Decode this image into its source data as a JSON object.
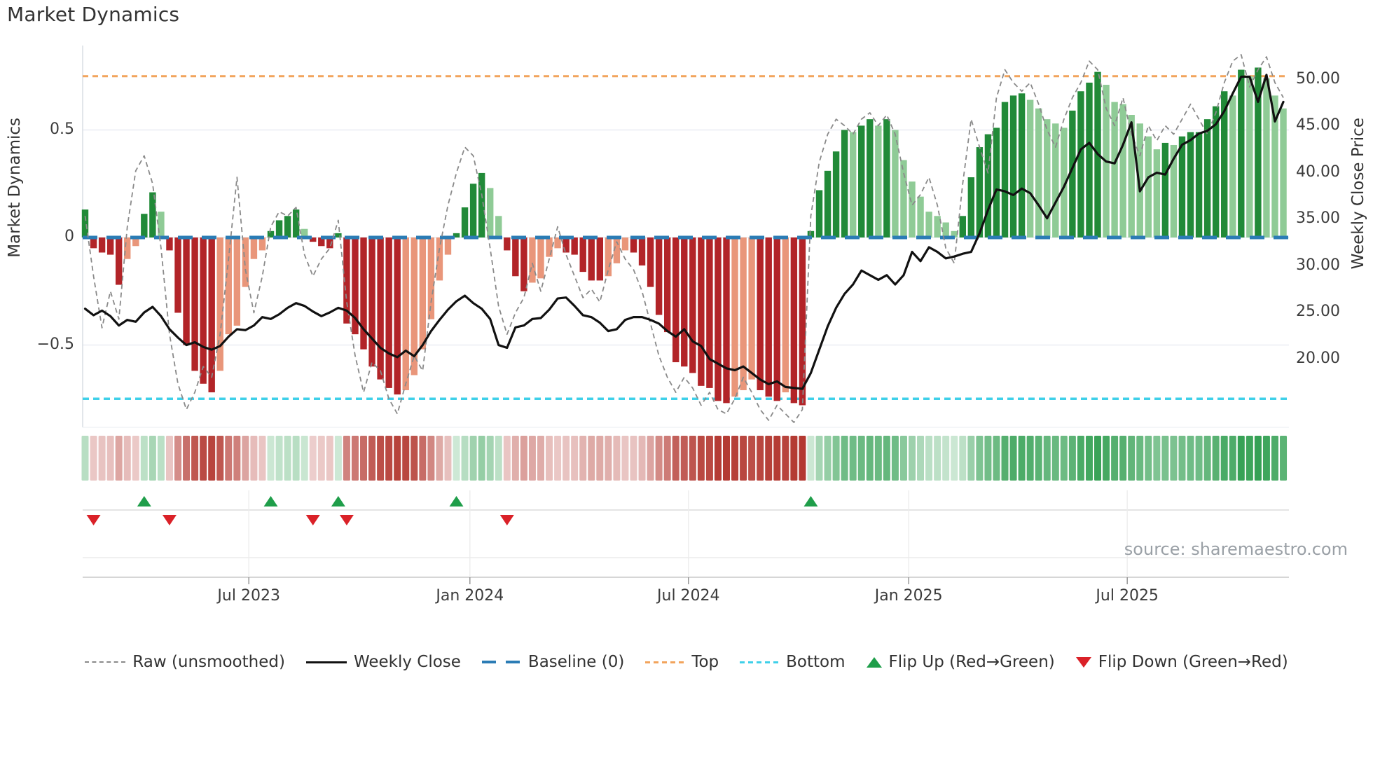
{
  "title": "Market Dynamics",
  "source": "source: sharemaestro.com",
  "left_axis": {
    "label": "Market Dynamics",
    "ticks": [
      {
        "value": 0.5,
        "label": "0.5"
      },
      {
        "value": 0,
        "label": "0"
      },
      {
        "value": -0.5,
        "label": "−0.5"
      }
    ]
  },
  "right_axis": {
    "label": "Weekly Close Price",
    "ticks": [
      {
        "value": 50,
        "label": "50.00"
      },
      {
        "value": 45,
        "label": "45.00"
      },
      {
        "value": 40,
        "label": "40.00"
      },
      {
        "value": 35,
        "label": "35.00"
      },
      {
        "value": 30,
        "label": "30.00"
      },
      {
        "value": 25,
        "label": "25.00"
      },
      {
        "value": 20,
        "label": "20.00"
      }
    ]
  },
  "x_axis": {
    "ticks": [
      {
        "week": 19.4,
        "label": "Jul 2023"
      },
      {
        "week": 45.6,
        "label": "Jan 2024"
      },
      {
        "week": 71.5,
        "label": "Jul 2024"
      },
      {
        "week": 97.6,
        "label": "Jan 2025"
      },
      {
        "week": 123.5,
        "label": "Jul 2025"
      }
    ]
  },
  "legend": [
    {
      "label": "Raw (unsmoothed)",
      "swatch": "dash",
      "color": "#8a8a8a"
    },
    {
      "label": "Weekly Close",
      "swatch": "solid",
      "color": "#111111"
    },
    {
      "label": "Baseline (0)",
      "swatch": "longdash",
      "color": "#2b7cb5"
    },
    {
      "label": "Top",
      "swatch": "dots",
      "color": "#f2a45c"
    },
    {
      "label": "Bottom",
      "swatch": "dots",
      "color": "#3fd0e9"
    },
    {
      "label": "Flip Up (Red→Green)",
      "swatch": "up",
      "color": "#1f9e4a"
    },
    {
      "label": "Flip Down (Green→Red)",
      "swatch": "down",
      "color": "#da2128"
    }
  ],
  "colors": {
    "bar_pos_strong": "#218a38",
    "bar_pos_soft": "#8fcb96",
    "bar_neg_strong": "#b22428",
    "bar_neg_soft": "#e9967a",
    "raw_line": "#8a8a8a",
    "close_line": "#111111",
    "baseline": "#2b7cb5",
    "top_line": "#f2a45c",
    "bottom_line": "#3fd0e9",
    "flip_up": "#1f9e4a",
    "flip_down": "#da2128",
    "heat_pos": "#2f9e4f",
    "heat_neg": "#b03028",
    "grid": "#e9edf3",
    "spine": "#d9dde3"
  },
  "chart_data": {
    "type": "bar",
    "description": "Weekly market-dynamics oscillator (bars + raw dashed line, left axis) with weekly close price (black line, right axis), sign heatmap strip and flip markers",
    "n_weeks": 143,
    "x_unit": "week",
    "left_ylim": [
      -0.88,
      0.89
    ],
    "right_ylim": [
      12.7,
      53.6
    ],
    "baseline": 0,
    "top_threshold": 0.75,
    "bottom_threshold": -0.75,
    "flip_up_weeks": [
      7,
      22,
      30,
      44,
      86
    ],
    "flip_down_weeks": [
      1,
      10,
      27,
      31,
      50
    ],
    "heatmap": {
      "rows": 1,
      "encodes": "oscillator sign and magnitude per week"
    },
    "series": [
      {
        "name": "Smoothed oscillator",
        "type": "bar",
        "axis": "left",
        "values": [
          0.13,
          -0.05,
          -0.07,
          -0.08,
          -0.22,
          -0.1,
          -0.04,
          0.11,
          0.21,
          0.12,
          -0.06,
          -0.35,
          -0.5,
          -0.62,
          -0.68,
          -0.72,
          -0.62,
          -0.45,
          -0.41,
          -0.23,
          -0.1,
          -0.06,
          0.03,
          0.08,
          0.1,
          0.13,
          0.04,
          -0.02,
          -0.04,
          -0.05,
          0.02,
          -0.4,
          -0.45,
          -0.52,
          -0.6,
          -0.66,
          -0.7,
          -0.73,
          -0.71,
          -0.64,
          -0.52,
          -0.38,
          -0.2,
          -0.08,
          0.02,
          0.14,
          0.25,
          0.3,
          0.23,
          0.1,
          -0.06,
          -0.18,
          -0.25,
          -0.21,
          -0.19,
          -0.09,
          -0.05,
          -0.07,
          -0.08,
          -0.16,
          -0.2,
          -0.2,
          -0.18,
          -0.12,
          -0.06,
          -0.07,
          -0.13,
          -0.23,
          -0.36,
          -0.44,
          -0.58,
          -0.6,
          -0.63,
          -0.69,
          -0.7,
          -0.76,
          -0.77,
          -0.74,
          -0.71,
          -0.66,
          -0.71,
          -0.74,
          -0.76,
          -0.72,
          -0.77,
          -0.78,
          0.03,
          0.22,
          0.31,
          0.4,
          0.5,
          0.49,
          0.52,
          0.55,
          0.52,
          0.55,
          0.5,
          0.36,
          0.26,
          0.19,
          0.12,
          0.1,
          0.07,
          0.03,
          0.1,
          0.28,
          0.42,
          0.48,
          0.51,
          0.63,
          0.66,
          0.67,
          0.64,
          0.6,
          0.55,
          0.53,
          0.51,
          0.59,
          0.68,
          0.72,
          0.77,
          0.71,
          0.63,
          0.62,
          0.57,
          0.53,
          0.47,
          0.41,
          0.44,
          0.43,
          0.47,
          0.49,
          0.49,
          0.55,
          0.61,
          0.68,
          0.66,
          0.78,
          0.75,
          0.79,
          0.74,
          0.66,
          0.6
        ]
      },
      {
        "name": "Raw (unsmoothed)",
        "type": "line",
        "style": "dashed",
        "axis": "left",
        "values": [
          0.1,
          -0.18,
          -0.42,
          -0.25,
          -0.38,
          0.05,
          0.31,
          0.38,
          0.25,
          -0.05,
          -0.45,
          -0.68,
          -0.8,
          -0.72,
          -0.6,
          -0.65,
          -0.45,
          -0.1,
          0.28,
          -0.15,
          -0.35,
          -0.18,
          0.05,
          0.12,
          0.1,
          0.14,
          -0.08,
          -0.18,
          -0.1,
          -0.05,
          0.08,
          -0.3,
          -0.55,
          -0.72,
          -0.58,
          -0.62,
          -0.75,
          -0.82,
          -0.68,
          -0.55,
          -0.62,
          -0.3,
          -0.05,
          0.15,
          0.3,
          0.42,
          0.38,
          0.2,
          -0.05,
          -0.32,
          -0.45,
          -0.35,
          -0.28,
          -0.12,
          -0.25,
          -0.1,
          0.05,
          -0.08,
          -0.18,
          -0.28,
          -0.24,
          -0.3,
          -0.15,
          -0.02,
          -0.1,
          -0.15,
          -0.25,
          -0.4,
          -0.55,
          -0.65,
          -0.72,
          -0.65,
          -0.7,
          -0.78,
          -0.72,
          -0.8,
          -0.82,
          -0.75,
          -0.65,
          -0.72,
          -0.8,
          -0.85,
          -0.78,
          -0.82,
          -0.86,
          -0.8,
          0.1,
          0.35,
          0.48,
          0.55,
          0.52,
          0.48,
          0.55,
          0.58,
          0.52,
          0.57,
          0.48,
          0.3,
          0.15,
          0.2,
          0.28,
          0.15,
          -0.05,
          -0.12,
          0.25,
          0.55,
          0.42,
          0.3,
          0.65,
          0.78,
          0.72,
          0.68,
          0.72,
          0.62,
          0.5,
          0.42,
          0.55,
          0.65,
          0.72,
          0.82,
          0.78,
          0.6,
          0.52,
          0.65,
          0.48,
          0.38,
          0.52,
          0.45,
          0.52,
          0.48,
          0.55,
          0.62,
          0.55,
          0.48,
          0.58,
          0.72,
          0.82,
          0.85,
          0.7,
          0.78,
          0.84,
          0.72,
          0.65
        ]
      },
      {
        "name": "Weekly Close",
        "type": "line",
        "axis": "right",
        "values": [
          25.4,
          24.7,
          25.2,
          24.6,
          23.6,
          24.2,
          24.0,
          25.0,
          25.6,
          24.6,
          23.2,
          22.3,
          21.5,
          21.8,
          21.3,
          21.0,
          21.4,
          22.4,
          23.2,
          23.1,
          23.6,
          24.5,
          24.3,
          24.8,
          25.5,
          26.0,
          25.7,
          25.1,
          24.6,
          25.0,
          25.5,
          25.2,
          24.4,
          23.2,
          22.2,
          21.2,
          20.6,
          20.2,
          20.9,
          20.3,
          21.5,
          23.0,
          24.2,
          25.3,
          26.2,
          26.8,
          26.0,
          25.4,
          24.3,
          21.5,
          21.2,
          23.4,
          23.6,
          24.3,
          24.4,
          25.3,
          26.5,
          26.6,
          25.7,
          24.7,
          24.5,
          23.9,
          23.0,
          23.2,
          24.2,
          24.5,
          24.5,
          24.2,
          23.8,
          23.0,
          22.4,
          23.2,
          21.9,
          21.4,
          20.0,
          19.5,
          19.0,
          18.8,
          19.2,
          18.5,
          17.8,
          17.3,
          17.6,
          17.0,
          16.9,
          16.8,
          18.5,
          21.0,
          23.5,
          25.5,
          27.0,
          28.0,
          29.5,
          29.0,
          28.5,
          29.0,
          28.0,
          29.0,
          31.5,
          30.5,
          32.0,
          31.5,
          30.8,
          31.0,
          31.3,
          31.5,
          33.5,
          36.0,
          38.2,
          38.0,
          37.6,
          38.3,
          37.8,
          36.5,
          35.1,
          36.8,
          38.5,
          40.5,
          42.5,
          43.2,
          42.0,
          41.2,
          41.0,
          43.0,
          45.4,
          38.0,
          39.5,
          40.0,
          39.8,
          41.5,
          43.0,
          43.5,
          44.2,
          44.5,
          45.2,
          46.6,
          48.5,
          50.3,
          50.3,
          47.6,
          50.5,
          45.5,
          47.6
        ]
      }
    ]
  }
}
